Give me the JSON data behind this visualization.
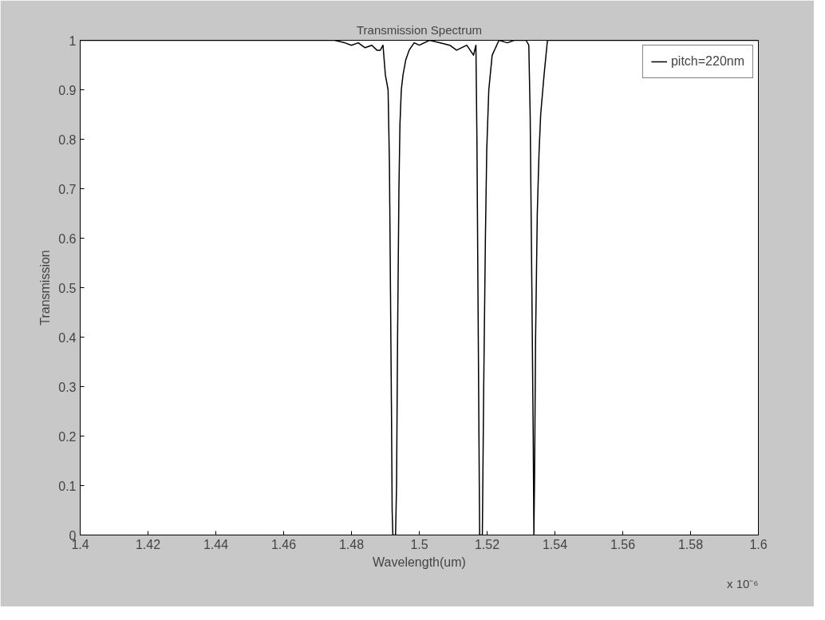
{
  "chart_data": {
    "type": "line",
    "title": "Transmission Spectrum",
    "xlabel": "Wavelength(um)",
    "ylabel": "Transmission",
    "annotations": [
      "x 10⁻⁶"
    ],
    "x": [
      1.4,
      1.475,
      1.478,
      1.48,
      1.482,
      1.484,
      1.486,
      1.4875,
      1.4885,
      1.4893,
      1.49,
      1.4908,
      1.4912,
      1.4915,
      1.4918,
      1.492,
      1.4922,
      1.493,
      1.4933,
      1.4936,
      1.494,
      1.4943,
      1.4947,
      1.4952,
      1.496,
      1.497,
      1.4985,
      1.5,
      1.503,
      1.506,
      1.509,
      1.511,
      1.514,
      1.516,
      1.5167,
      1.517,
      1.5173,
      1.5176,
      1.5178,
      1.5186,
      1.519,
      1.5195,
      1.5199,
      1.5205,
      1.5215,
      1.5235,
      1.526,
      1.528,
      1.5315,
      1.5323,
      1.5327,
      1.5332,
      1.5336,
      1.5338,
      1.534,
      1.5343,
      1.5348,
      1.5353,
      1.5358,
      1.5368,
      1.5378,
      1.6
    ],
    "series": [
      {
        "name": "pitch=220nm",
        "color": "#000000",
        "values": [
          1,
          1,
          0.995,
          0.99,
          0.995,
          0.985,
          0.99,
          0.98,
          0.98,
          0.99,
          0.93,
          0.9,
          0.75,
          0.5,
          0.25,
          0.05,
          0,
          0,
          0.1,
          0.4,
          0.7,
          0.83,
          0.9,
          0.93,
          0.96,
          0.98,
          0.995,
          0.99,
          1,
          0.995,
          0.99,
          0.98,
          0.99,
          0.97,
          0.99,
          0.8,
          0.5,
          0.2,
          0,
          0,
          0.3,
          0.6,
          0.78,
          0.9,
          0.97,
          1,
          0.995,
          1,
          1,
          0.99,
          0.85,
          0.5,
          0.2,
          0,
          0.12,
          0.4,
          0.65,
          0.77,
          0.85,
          0.93,
          1,
          1
        ]
      }
    ],
    "xlim": [
      1.4,
      1.6
    ],
    "ylim": [
      0,
      1
    ],
    "xticks": [
      1.4,
      1.42,
      1.44,
      1.46,
      1.48,
      1.5,
      1.52,
      1.54,
      1.56,
      1.58,
      1.6
    ],
    "yticks": [
      0,
      0.1,
      0.2,
      0.3,
      0.4,
      0.5,
      0.6,
      0.7,
      0.8,
      0.9,
      1
    ],
    "grid": false,
    "legend": "top right",
    "line_style": "solid",
    "marker": "none"
  }
}
